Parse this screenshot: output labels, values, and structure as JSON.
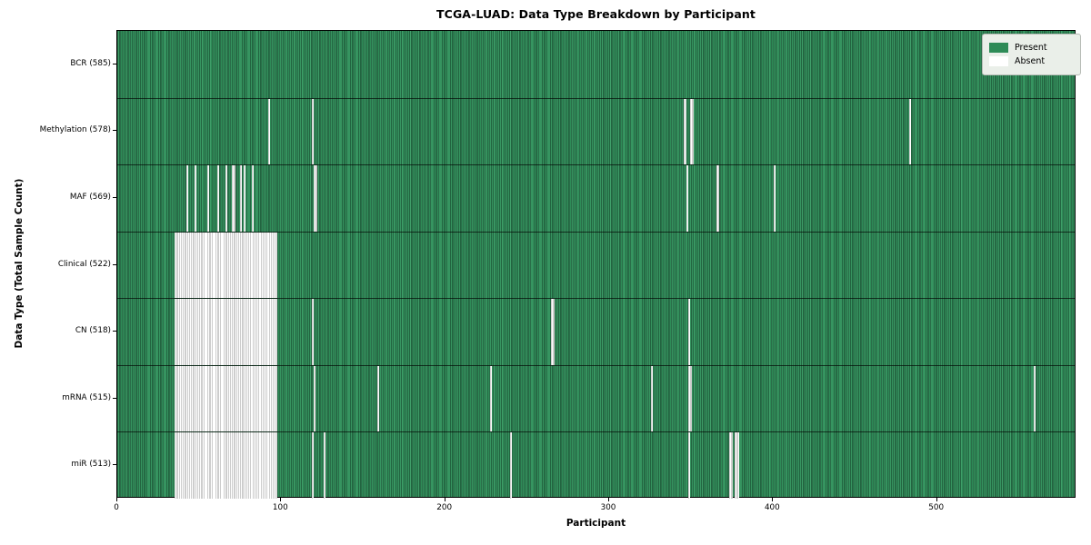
{
  "title": "TCGA-LUAD: Data Type Breakdown by Participant",
  "legend": {
    "present_label": "Present",
    "absent_label": "Absent"
  },
  "colors": {
    "present": "#2e8b57",
    "present_light": "#3f9e69",
    "present_edge": "#163f29",
    "absent": "#ffffff",
    "absent_edge": "#9b9b9b"
  },
  "chart_data": {
    "type": "heatmap",
    "title": "TCGA-LUAD: Data Type Breakdown by Participant",
    "xlabel": "Participant",
    "ylabel": "Data Type (Total Sample Count)",
    "legend_entries": [
      "Present",
      "Absent"
    ],
    "legend_position": "upper right",
    "x_ticks": [
      0,
      100,
      200,
      300,
      400,
      500
    ],
    "x_range": [
      0,
      585
    ],
    "n_participants": 585,
    "cell_values": "binary presence (1=Present green, 0=Absent white) per participant per data type",
    "rows": [
      {
        "name": "BCR",
        "label": "BCR (585)",
        "present_count": 585,
        "absent_ranges": []
      },
      {
        "name": "Methylation",
        "label": "Methylation (578)",
        "present_count": 578,
        "absent_ranges": [
          [
            92,
            1
          ],
          [
            119,
            1
          ],
          [
            346,
            2
          ],
          [
            350,
            2
          ],
          [
            484,
            1
          ]
        ]
      },
      {
        "name": "MAF",
        "label": "MAF (569)",
        "present_count": 569,
        "absent_ranges": [
          [
            42,
            1
          ],
          [
            47,
            1
          ],
          [
            55,
            1
          ],
          [
            61,
            1
          ],
          [
            66,
            1
          ],
          [
            70,
            2
          ],
          [
            75,
            1
          ],
          [
            77,
            1
          ],
          [
            82,
            1
          ],
          [
            120,
            2
          ],
          [
            348,
            1
          ],
          [
            366,
            2
          ],
          [
            401,
            1
          ]
        ]
      },
      {
        "name": "Clinical",
        "label": "Clinical (522)",
        "present_count": 522,
        "absent_ranges": [
          [
            35,
            63
          ]
        ]
      },
      {
        "name": "CN",
        "label": "CN (518)",
        "present_count": 518,
        "absent_ranges": [
          [
            35,
            63
          ],
          [
            119,
            1
          ],
          [
            265,
            2
          ],
          [
            349,
            1
          ]
        ]
      },
      {
        "name": "mRNA",
        "label": "mRNA (515)",
        "present_count": 515,
        "absent_ranges": [
          [
            35,
            63
          ],
          [
            120,
            1
          ],
          [
            159,
            1
          ],
          [
            228,
            1
          ],
          [
            326,
            1
          ],
          [
            349,
            2
          ],
          [
            560,
            1
          ]
        ]
      },
      {
        "name": "miR",
        "label": "miR (513)",
        "present_count": 513,
        "absent_ranges": [
          [
            35,
            63
          ],
          [
            119,
            1
          ],
          [
            126,
            1
          ],
          [
            240,
            1
          ],
          [
            349,
            1
          ],
          [
            374,
            2
          ],
          [
            377,
            3
          ]
        ]
      }
    ]
  }
}
